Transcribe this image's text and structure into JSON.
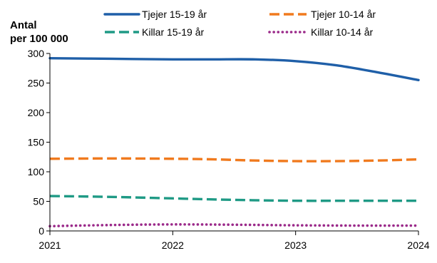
{
  "chart_data": {
    "type": "line",
    "ylabel_line1": "Antal",
    "ylabel_line2": "per 100 000",
    "x": [
      "2021",
      "2022",
      "2023",
      "2024"
    ],
    "ylim": [
      0,
      300
    ],
    "yticks": [
      "0",
      "50",
      "100",
      "150",
      "200",
      "250",
      "300"
    ],
    "grid": false,
    "legend_position": "top",
    "series": [
      {
        "name": "Tjejer 15-19 år",
        "color": "#1f5fa8",
        "dash": "solid",
        "points": [
          [
            2021,
            292
          ],
          [
            2021.5,
            291
          ],
          [
            2022,
            290
          ],
          [
            2022.33,
            290
          ],
          [
            2022.67,
            290
          ],
          [
            2023,
            287
          ],
          [
            2023.33,
            280
          ],
          [
            2023.67,
            268
          ],
          [
            2024,
            255
          ]
        ]
      },
      {
        "name": "Tjejer 10-14 år",
        "color": "#f07a1e",
        "dash": "dashed",
        "points": [
          [
            2021,
            122
          ],
          [
            2021.5,
            122.5
          ],
          [
            2022,
            122
          ],
          [
            2022.33,
            121
          ],
          [
            2022.67,
            119
          ],
          [
            2023,
            118
          ],
          [
            2023.33,
            118
          ],
          [
            2023.67,
            119
          ],
          [
            2024,
            121
          ]
        ]
      },
      {
        "name": "Killar 15-19 år",
        "color": "#1f9a85",
        "dash": "dashed",
        "points": [
          [
            2021,
            59
          ],
          [
            2021.5,
            57.5
          ],
          [
            2022,
            55
          ],
          [
            2022.5,
            52.5
          ],
          [
            2023,
            51
          ],
          [
            2023.5,
            51
          ],
          [
            2024,
            51
          ]
        ]
      },
      {
        "name": "Killar 10-14 år",
        "color": "#9b2a8a",
        "dash": "dotted",
        "points": [
          [
            2021,
            8
          ],
          [
            2021.5,
            10
          ],
          [
            2022,
            11
          ],
          [
            2022.5,
            10.5
          ],
          [
            2023,
            9.5
          ],
          [
            2023.5,
            9
          ],
          [
            2024,
            9
          ]
        ]
      }
    ]
  }
}
